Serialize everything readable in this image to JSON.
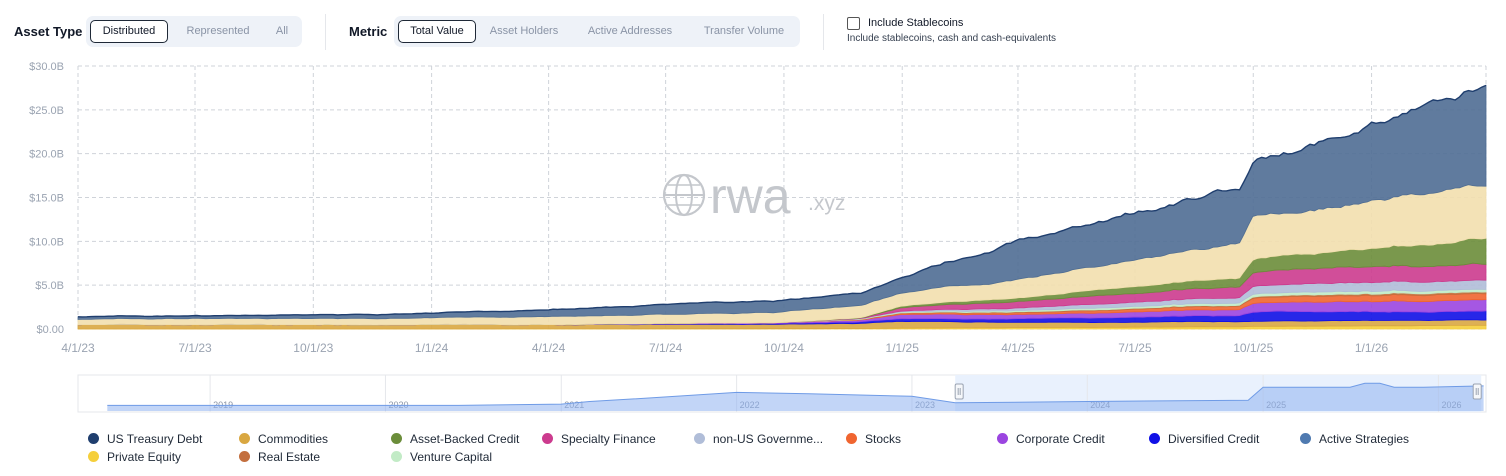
{
  "controls": {
    "asset_type": {
      "label": "Asset Type",
      "options": [
        {
          "label": "Distributed",
          "active": true
        },
        {
          "label": "Represented",
          "active": false
        },
        {
          "label": "All",
          "active": false
        }
      ]
    },
    "metric": {
      "label": "Metric",
      "options": [
        {
          "label": "Total Value",
          "active": true
        },
        {
          "label": "Asset Holders",
          "active": false
        },
        {
          "label": "Active Addresses",
          "active": false
        },
        {
          "label": "Transfer Volume",
          "active": false
        }
      ]
    },
    "stablecoins": {
      "checked": false,
      "label": "Include Stablecoins",
      "description": "Include stablecoins, cash and cash-equivalents"
    }
  },
  "watermark": {
    "main": "rwa",
    "suffix": ".xyz"
  },
  "chart_data": {
    "type": "area",
    "stacked": true,
    "x_ticks": [
      "4/1/23",
      "7/1/23",
      "10/1/23",
      "1/1/24",
      "4/1/24",
      "7/1/24",
      "10/1/24",
      "1/1/25",
      "4/1/25",
      "7/1/25",
      "10/1/25",
      "1/1/26"
    ],
    "x_range": [
      "2023-04-01",
      "2026-03-31"
    ],
    "y_ticks": [
      "$0.00",
      "$5.0B",
      "$10.0B",
      "$15.0B",
      "$20.0B",
      "$25.0B",
      "$30.0B"
    ],
    "y_range": [
      0,
      30
    ],
    "y_unit": "billion USD",
    "grid": true,
    "legend_position": "bottom",
    "x": [
      "2023-04-01",
      "2023-07-01",
      "2023-10-01",
      "2024-01-01",
      "2024-04-01",
      "2024-07-01",
      "2024-10-01",
      "2024-12-01",
      "2025-01-01",
      "2025-04-01",
      "2025-07-01",
      "2025-09-20",
      "2025-10-01",
      "2026-01-01",
      "2026-03-31"
    ],
    "series": [
      {
        "name": "Private Equity",
        "color": "#f5cf3c",
        "values": [
          0,
          0,
          0,
          0,
          0.01,
          0.02,
          0.03,
          0.05,
          0.1,
          0.15,
          0.2,
          0.25,
          0.3,
          0.35,
          0.4
        ]
      },
      {
        "name": "Commodities",
        "color": "#d9a741",
        "values": [
          0.5,
          0.5,
          0.5,
          0.5,
          0.5,
          0.5,
          0.5,
          0.6,
          0.8,
          0.6,
          0.6,
          0.6,
          0.6,
          0.6,
          0.6
        ]
      },
      {
        "name": "Diversified Credit",
        "color": "#1010e6",
        "values": [
          0,
          0,
          0,
          0,
          0,
          0.05,
          0.1,
          0.2,
          0.3,
          0.4,
          0.6,
          0.7,
          1.1,
          1.0,
          1.0
        ]
      },
      {
        "name": "Corporate Credit",
        "color": "#9b45e0",
        "values": [
          0,
          0,
          0,
          0,
          0,
          0.05,
          0.1,
          0.2,
          0.5,
          0.5,
          0.6,
          0.7,
          1.0,
          1.2,
          1.2
        ]
      },
      {
        "name": "Stocks",
        "color": "#f06530",
        "values": [
          0,
          0,
          0,
          0,
          0,
          0,
          0,
          0.05,
          0.15,
          0.2,
          0.3,
          0.4,
          0.6,
          0.7,
          0.7
        ]
      },
      {
        "name": "Real Estate",
        "color": "#c36f3e",
        "values": [
          0,
          0,
          0,
          0,
          0,
          0,
          0,
          0.03,
          0.05,
          0.1,
          0.1,
          0.1,
          0.15,
          0.2,
          0.2
        ]
      },
      {
        "name": "Venture Capital",
        "color": "#c2ebc6",
        "values": [
          0,
          0,
          0,
          0,
          0,
          0,
          0,
          0.05,
          0.1,
          0.15,
          0.2,
          0.25,
          0.3,
          0.3,
          0.3
        ]
      },
      {
        "name": "non-US Government Debt",
        "color": "#b0bdd8",
        "values": [
          0,
          0,
          0,
          0,
          0,
          0,
          0,
          0.05,
          0.1,
          0.3,
          0.5,
          0.6,
          0.9,
          1.0,
          1.0
        ]
      },
      {
        "name": "Specialty Finance",
        "color": "#cc3b8e",
        "values": [
          0,
          0,
          0,
          0,
          0,
          0,
          0,
          0.05,
          0.4,
          0.8,
          1.0,
          1.2,
          1.6,
          1.8,
          1.9
        ]
      },
      {
        "name": "Asset-Backed Credit",
        "color": "#6b8d3a",
        "values": [
          0,
          0,
          0,
          0,
          0,
          0,
          0,
          0.05,
          0.2,
          0.4,
          0.8,
          1.0,
          1.5,
          2.0,
          3.0
        ]
      },
      {
        "name": "US Treasury Debt",
        "color": "#f2dfae",
        "values": [
          0.6,
          0.7,
          0.7,
          0.8,
          0.9,
          1.0,
          1.2,
          1.4,
          1.5,
          2.1,
          3.0,
          4.0,
          4.8,
          5.3,
          5.9
        ]
      },
      {
        "name": "Active Strategies",
        "color": "#4f6d93",
        "values": [
          0.3,
          0.3,
          0.4,
          0.5,
          0.8,
          1.1,
          1.3,
          1.4,
          1.8,
          4.2,
          5.5,
          6.3,
          6.4,
          8.4,
          10.8
        ]
      }
    ]
  },
  "navigator": {
    "year_labels": [
      "2019",
      "2020",
      "2021",
      "2022",
      "2023",
      "2024",
      "2025",
      "2026"
    ],
    "selection_range": [
      "2023-04-01",
      "2026-03-31"
    ]
  },
  "legend": [
    {
      "label": "US Treasury Debt",
      "color": "#1f3e6e"
    },
    {
      "label": "Commodities",
      "color": "#d9a741"
    },
    {
      "label": "Asset-Backed Credit",
      "color": "#6b8d3a"
    },
    {
      "label": "Specialty Finance",
      "color": "#cc3b8e"
    },
    {
      "label": "non-US Governme...",
      "color": "#b0bdd8"
    },
    {
      "label": "Stocks",
      "color": "#f06530"
    },
    {
      "label": "Corporate Credit",
      "color": "#9b45e0"
    },
    {
      "label": "Diversified Credit",
      "color": "#1010e6"
    },
    {
      "label": "Active Strategies",
      "color": "#4f7ab0"
    },
    {
      "label": "Private Equity",
      "color": "#f5cf3c"
    },
    {
      "label": "Real Estate",
      "color": "#c36f3e"
    },
    {
      "label": "Venture Capital",
      "color": "#c2ebc6"
    }
  ]
}
